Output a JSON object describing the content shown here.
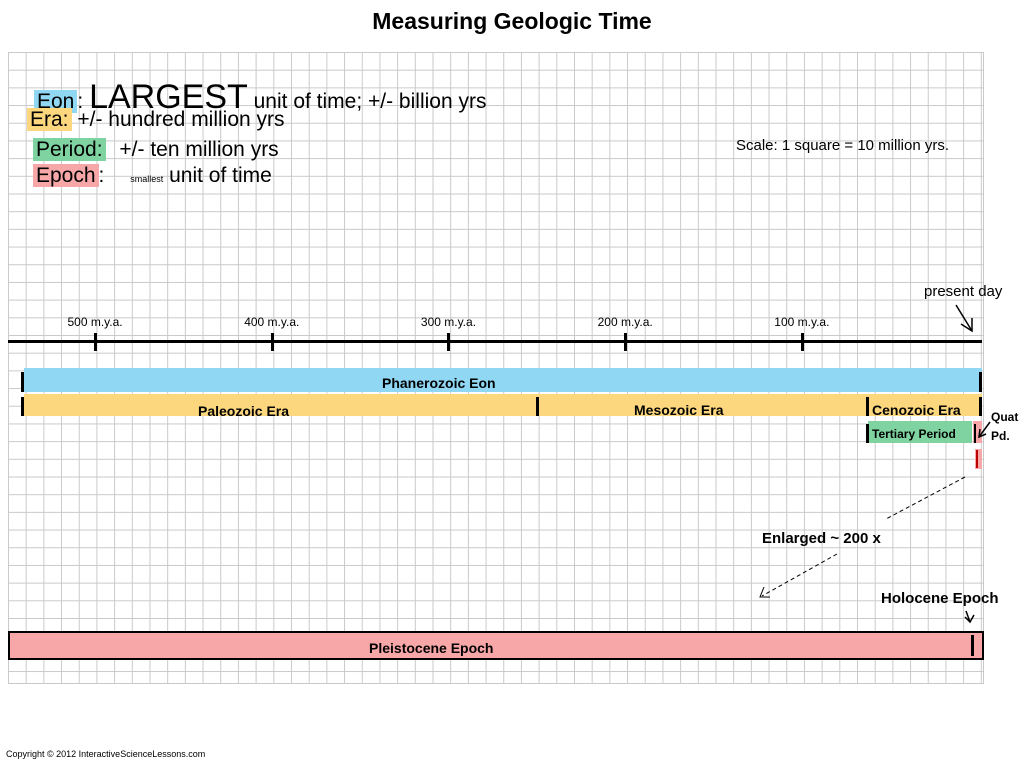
{
  "title": "Measuring Geologic Time",
  "legend": {
    "eon": {
      "term": "Eon",
      "sep": ":",
      "big": "LARGEST",
      "desc": "unit of time;  +/- billion yrs",
      "color": "#8fd7f3"
    },
    "era": {
      "term": "Era:",
      "desc": "+/-  hundred million yrs",
      "color": "#fcd77e"
    },
    "period": {
      "term": "Period:",
      "desc": "+/-  ten million yrs",
      "color": "#7fd3a0"
    },
    "epoch": {
      "term": "Epoch",
      "sep": ":",
      "small": "smallest",
      "desc": "unit of time",
      "color": "#f7a7a7"
    }
  },
  "scale": "Scale:  1 square = 10 million yrs.",
  "timeline": {
    "ticks": [
      {
        "mya": 500,
        "label": "500 m.y.a."
      },
      {
        "mya": 400,
        "label": "400 m.y.a."
      },
      {
        "mya": 300,
        "label": "300 m.y.a."
      },
      {
        "mya": 200,
        "label": "200 m.y.a."
      },
      {
        "mya": 100,
        "label": "100 m.y.a."
      }
    ],
    "present_label": "present day"
  },
  "eon": {
    "label": "Phanerozoic Eon"
  },
  "eras": {
    "paleozoic": "Paleozoic Era",
    "mesozoic": "Mesozoic Era",
    "cenozoic": "Cenozoic Era"
  },
  "periods": {
    "tertiary": "Tertiary Period",
    "quaternary_line1": "Quat",
    "quaternary_line2": "Pd."
  },
  "enlarged": "Enlarged ~ 200 x",
  "epochs": {
    "holocene": "Holocene Epoch",
    "pleistocene": "Pleistocene Epoch"
  },
  "copyright": "Copyright © 2012 InteractiveScienceLessons.com"
}
